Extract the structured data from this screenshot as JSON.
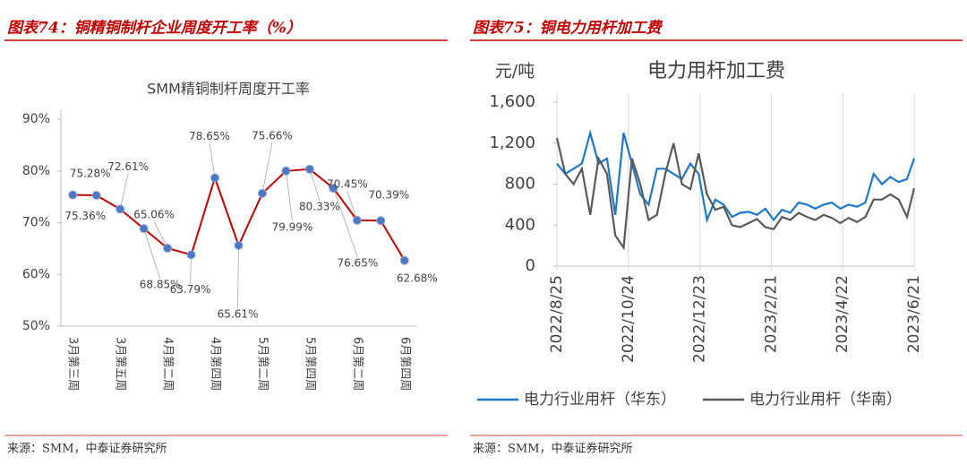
{
  "panels": [
    {
      "header": "图表74：铜精铜制杆企业周度开工率（%）",
      "source": "来源：SMM，中泰证券研究所"
    },
    {
      "header": "图表75：铜电力用杆加工费",
      "source": "来源：SMM，中泰证券研究所"
    }
  ],
  "chart_data": [
    {
      "type": "line",
      "title": "SMM精铜制杆周度开工率",
      "categories": [
        "3月第三周",
        null,
        "3月第五周",
        null,
        "4月第二周",
        null,
        "4月第四周",
        null,
        "5月第二周",
        null,
        "5月第四周",
        null,
        "6月第二周",
        null,
        "6月第四周"
      ],
      "series": [
        {
          "color": "#c00000",
          "marker_color": "#4a78c2",
          "values": [
            75.36,
            75.28,
            72.61,
            68.85,
            65.06,
            63.79,
            78.65,
            65.61,
            75.66,
            79.99,
            80.33,
            76.65,
            70.45,
            70.39,
            62.68
          ],
          "value_labels": [
            "75.36%",
            "75.28%",
            "72.61%",
            "68.85%",
            "65.06%",
            "63.79%",
            "78.65%",
            "65.61%",
            "75.66%",
            "79.99%",
            "80.33%",
            "76.65%",
            "70.45%",
            "70.39%",
            "62.68%"
          ]
        }
      ],
      "ylim": [
        50,
        90
      ],
      "yticks": [
        {
          "value": 50,
          "label": "50%"
        },
        {
          "value": 60,
          "label": "60%"
        },
        {
          "value": 70,
          "label": "70%"
        },
        {
          "value": 80,
          "label": "80%"
        },
        {
          "value": 90,
          "label": "90%"
        }
      ]
    },
    {
      "type": "line",
      "title": "电力用杆加工费",
      "y_label": "元/吨",
      "x": [
        "2022/8/25",
        "2022/9/1",
        "2022/9/8",
        "2022/9/15",
        "2022/9/22",
        "2022/9/29",
        "2022/10/6",
        "2022/10/13",
        "2022/10/20",
        "2022/10/27",
        "2022/11/3",
        "2022/11/10",
        "2022/11/17",
        "2022/11/24",
        "2022/12/1",
        "2022/12/8",
        "2022/12/15",
        "2022/12/22",
        "2022/12/29",
        "2023/1/5",
        "2023/1/12",
        "2023/1/19",
        "2023/1/26",
        "2023/2/2",
        "2023/2/9",
        "2023/2/16",
        "2023/2/23",
        "2023/3/2",
        "2023/3/9",
        "2023/3/16",
        "2023/3/23",
        "2023/3/30",
        "2023/4/6",
        "2023/4/13",
        "2023/4/20",
        "2023/4/27",
        "2023/5/4",
        "2023/5/11",
        "2023/5/18",
        "2023/5/25",
        "2023/6/1",
        "2023/6/8",
        "2023/6/15",
        "2023/6/21"
      ],
      "series": [
        {
          "name": "电力行业用杆（华东）",
          "color": "#1f77c8",
          "values": [
            1000,
            900,
            950,
            1000,
            1300,
            1000,
            1050,
            500,
            1300,
            1000,
            700,
            600,
            950,
            950,
            900,
            850,
            1000,
            900,
            450,
            650,
            600,
            480,
            520,
            530,
            500,
            560,
            450,
            550,
            520,
            620,
            600,
            560,
            600,
            620,
            560,
            600,
            580,
            620,
            900,
            800,
            870,
            820,
            850,
            1050
          ]
        },
        {
          "name": "电力行业用杆（华南）",
          "color": "#595959",
          "values": [
            1250,
            900,
            800,
            950,
            500,
            1050,
            900,
            300,
            180,
            1050,
            800,
            450,
            500,
            900,
            1200,
            800,
            750,
            1100,
            700,
            550,
            580,
            400,
            380,
            420,
            460,
            380,
            360,
            480,
            450,
            520,
            480,
            450,
            500,
            470,
            420,
            470,
            430,
            480,
            650,
            650,
            700,
            650,
            480,
            760
          ]
        }
      ],
      "xlim": [
        "2022/8/25",
        "2023/6/21"
      ],
      "xticks": [
        "2022/8/25",
        "2022/10/24",
        "2022/12/23",
        "2023/2/21",
        "2023/4/22",
        "2023/6/21"
      ],
      "ylim": [
        0,
        1600
      ],
      "yticks": [
        0,
        400,
        800,
        {
          "value": 1200,
          "label": "1,200"
        },
        {
          "value": 1600,
          "label": "1,600"
        }
      ],
      "legend": "bottom"
    }
  ]
}
